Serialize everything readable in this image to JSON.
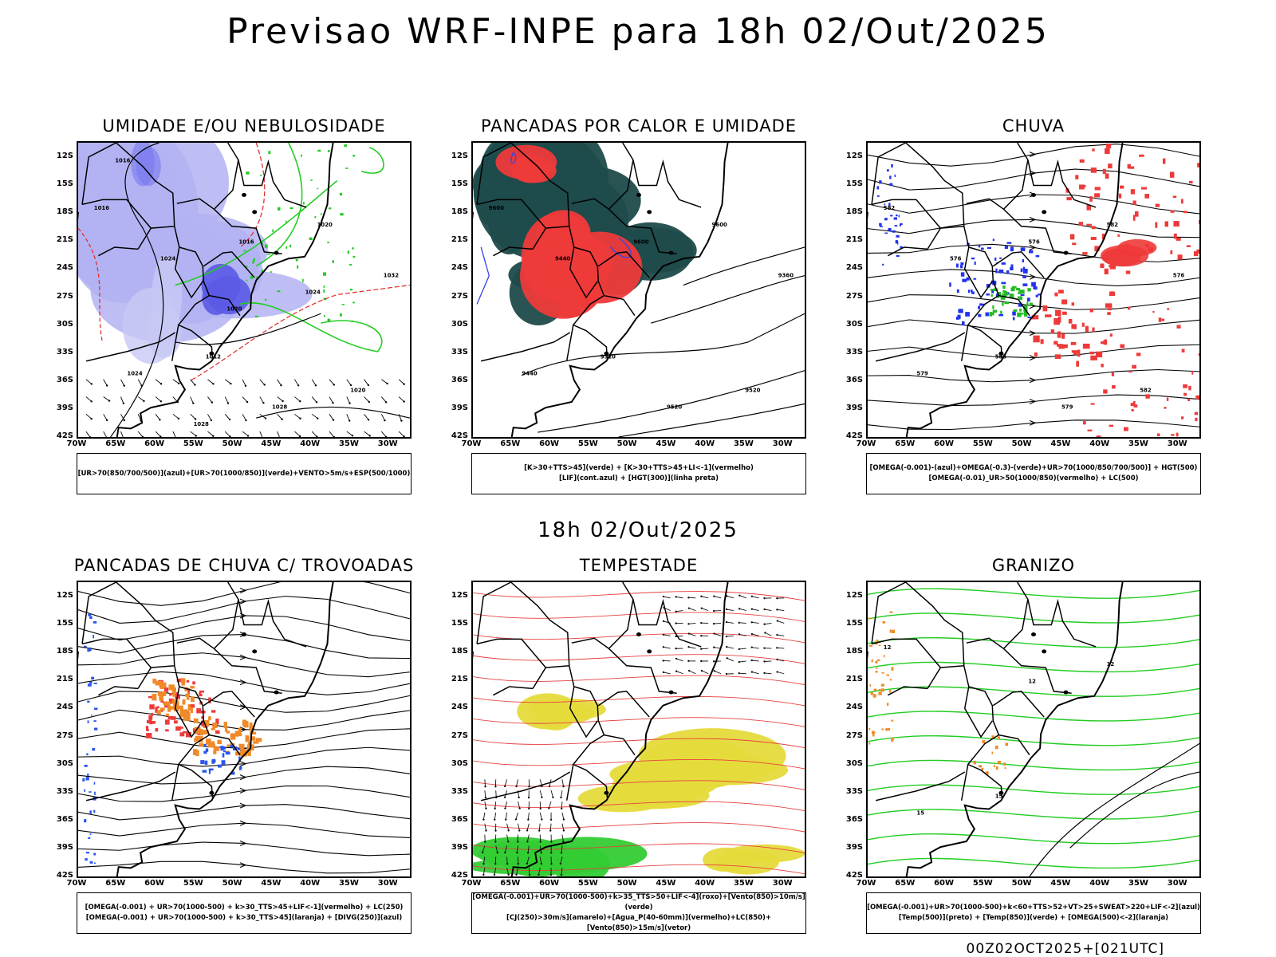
{
  "header": {
    "title": "Previsao WRF-INPE  para 18h 02/Out/2025",
    "subtitle": "18h 02/Out/2025",
    "footer": "00Z02OCT2025+[021UTC]"
  },
  "axes": {
    "lat_labels": [
      "12S",
      "15S",
      "18S",
      "21S",
      "24S",
      "27S",
      "30S",
      "33S",
      "36S",
      "39S",
      "42S"
    ],
    "lon_labels": [
      "70W",
      "65W",
      "60W",
      "55W",
      "50W",
      "45W",
      "40W",
      "35W",
      "30W"
    ]
  },
  "panels": [
    {
      "title": "UMIDADE E/OU NEBULOSIDADE",
      "legend": [
        "[UR>70(850/700/500)](azul)+[UR>70(1000/850)](verde)+VENTO>5m/s+ESP(500/1000)"
      ],
      "contour_labels": [
        "1016",
        "1012",
        "1020",
        "1024",
        "1016",
        "1020",
        "1024",
        "1028",
        "1032",
        "1028",
        "1024",
        "1016",
        "1020"
      ]
    },
    {
      "title": "PANCADAS POR CALOR E UMIDADE",
      "legend": [
        "[K>30+TTS>45](verde) + [K>30+TTS>45+LI<-1](vermelho)",
        "[LIF](cont.azul) + [HGT(300)](linha preta)"
      ],
      "contour_labels": [
        "9600",
        "9520",
        "9600",
        "9440",
        "9600",
        "9520",
        "9440",
        "9520",
        "9360"
      ]
    },
    {
      "title": "CHUVA",
      "legend": [
        "[OMEGA(-0.001)-(azul)+OMEGA(-0.3)-(verde)+UR>70(1000/850/700/500)] + HGT(500)",
        "[OMEGA(-0.01)_UR>50(1000/850)(vermelho) + LC(500)"
      ],
      "contour_labels": [
        "582",
        "585",
        "582",
        "579",
        "576",
        "582",
        "576",
        "579",
        "576"
      ]
    },
    {
      "title": "PANCADAS DE CHUVA C/ TROVOADAS",
      "legend": [
        "[OMEGA(-0.001) + UR>70(1000-500) + k>30_TTS>45+LIF<-1](vermelho) + LC(250)",
        "[OMEGA(-0.001) + UR>70(1000-500) + k>30_TTS>45](laranja) + [DIVG(250)](azul)"
      ],
      "contour_labels": []
    },
    {
      "title": "TEMPESTADE",
      "legend": [
        "[OMEGA(-0.001)+UR>70(1000-500)+k>35_TTS>50+LIF<-4](roxo)+[Vento(850)>10m/s](verde)",
        "[CJ(250)>30m/s](amarelo)+[Agua_P(40-60mm)](vermelho)+LC(850)+[Vento(850)>15m/s](vetor)"
      ],
      "contour_labels": []
    },
    {
      "title": "GRANIZO",
      "legend": [
        "[OMEGA(-0.001)+UR>70(1000-500)+k<60+TTS>52+VT>25+SWEAT>220+LIF<-2](azul)",
        "[Temp(500)](preto) + [Temp(850)](verde) + [OMEGA(500)<-2](laranja)"
      ],
      "contour_labels": [
        "12",
        "15",
        "12",
        "15",
        "12"
      ]
    }
  ]
}
